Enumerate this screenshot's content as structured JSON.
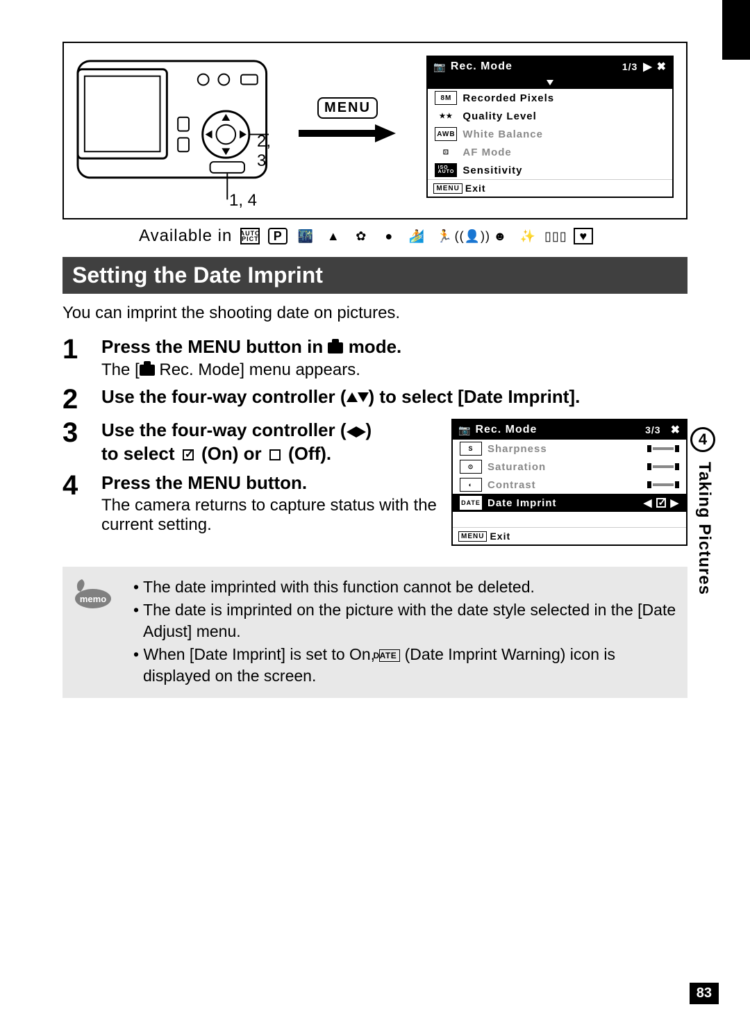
{
  "section": {
    "title": "Setting the Date Imprint",
    "intro": "You can imprint the shooting date on pictures."
  },
  "side": {
    "chapter_num": "4",
    "chapter_label": "Taking Pictures",
    "page_num": "83"
  },
  "diagram": {
    "label_top": "2, 3",
    "label_bottom": "1, 4",
    "menu_pill": "MENU"
  },
  "available_in_label": "Available in",
  "menu1": {
    "title": "Rec. Mode",
    "page": "1/3",
    "rows": [
      {
        "ico": "8M",
        "label": "Recorded Pixels",
        "dim": false,
        "ico_style": "box"
      },
      {
        "ico": "★★",
        "label": "Quality Level",
        "dim": false,
        "ico_style": "plain"
      },
      {
        "ico": "AWB",
        "label": "White Balance",
        "dim": true,
        "ico_style": "box"
      },
      {
        "ico": "⊡",
        "label": "AF Mode",
        "dim": true,
        "ico_style": "plain"
      },
      {
        "ico": "ISO\nAUTO",
        "label": "Sensitivity",
        "dim": false,
        "ico_style": "blackbox"
      }
    ],
    "exit": "Exit",
    "exit_pill": "MENU"
  },
  "menu2": {
    "title": "Rec. Mode",
    "page": "3/3",
    "rows": [
      {
        "ico": "S",
        "label": "Sharpness",
        "dim": true,
        "slider": true
      },
      {
        "ico": "⊙",
        "label": "Saturation",
        "dim": true,
        "slider": true
      },
      {
        "ico": "◐",
        "label": "Contrast",
        "dim": true,
        "slider": true
      },
      {
        "ico": "DATE",
        "label": "Date Imprint",
        "dim": false,
        "hl": true,
        "checkbox": true
      }
    ],
    "exit": "Exit",
    "exit_pill": "MENU"
  },
  "steps": {
    "s1": {
      "num": "1",
      "title_a": "Press the MENU button in ",
      "title_b": " mode.",
      "sub_a": "The [",
      "sub_b": " Rec. Mode] menu appears."
    },
    "s2": {
      "num": "2",
      "title": "Use the four-way controller (▲▼) to select [Date Imprint]."
    },
    "s3": {
      "num": "3",
      "title_a": "Use the four-way controller (◀▶)",
      "title_b": "to select ",
      "title_c": " (On) or ",
      "title_d": " (Off)."
    },
    "s4": {
      "num": "4",
      "title": "Press the MENU button.",
      "sub": "The camera returns to capture status with the current setting."
    }
  },
  "memo": {
    "items": [
      "The date imprinted with this function cannot be deleted.",
      "The date is imprinted on the picture with the date style selected in the [Date Adjust] menu.",
      "When [Date Imprint] is set to On, ___DATEICON___ (Date Imprint Warning) icon is displayed on the screen."
    ],
    "date_icon_label": "DATE"
  },
  "colors": {
    "section_bg": "#404040",
    "memo_bg": "#e8e8e8",
    "dim_text": "#888888"
  }
}
